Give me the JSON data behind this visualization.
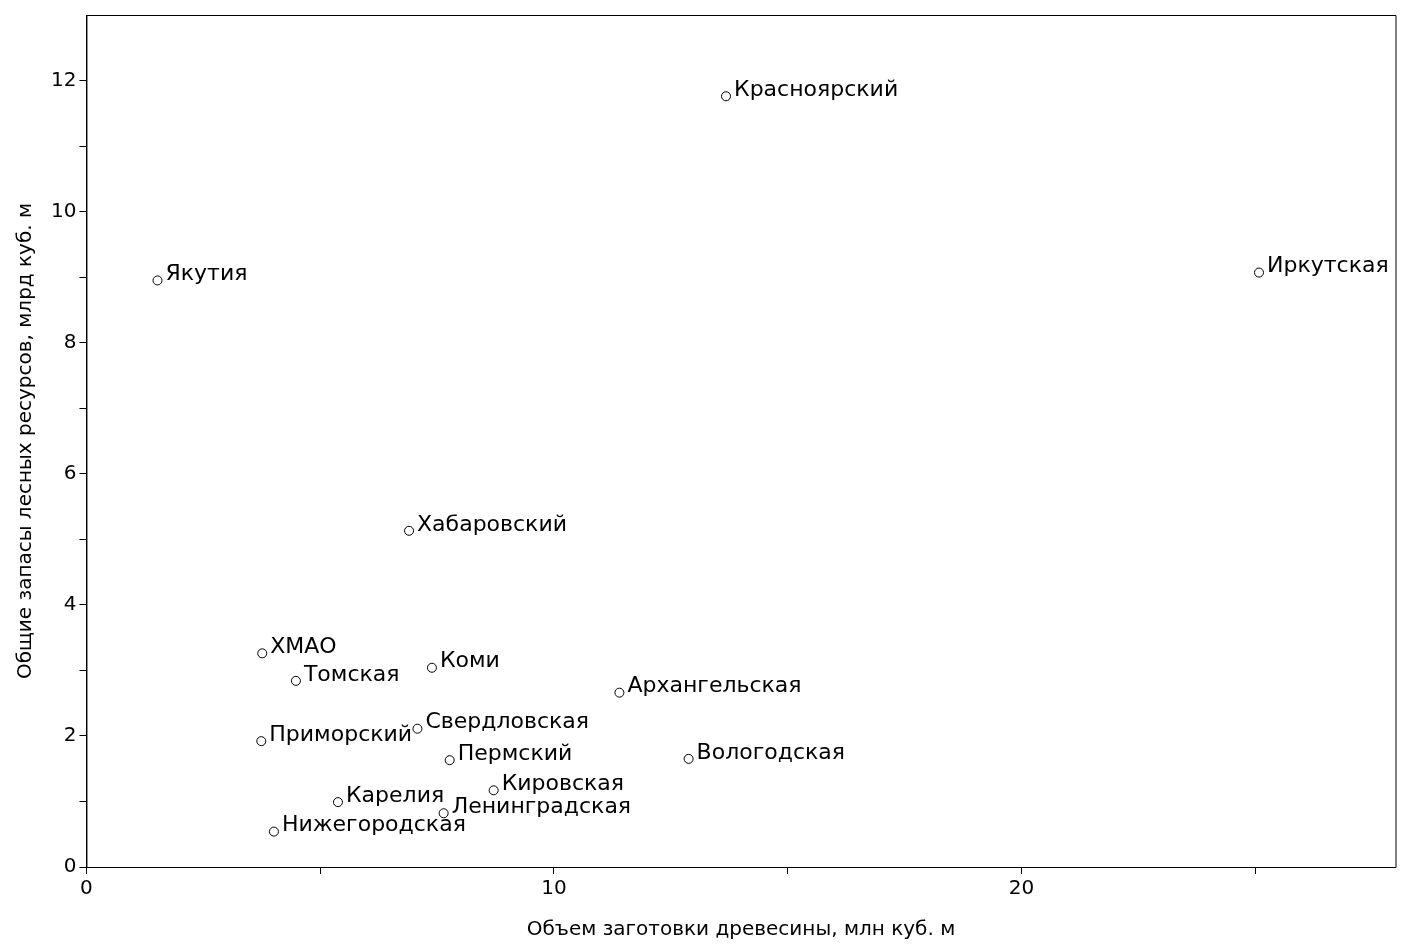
{
  "chart_data": {
    "type": "scatter",
    "xlabel": "Объем заготовки древесины, млн куб. м",
    "ylabel": "Общие запасы лесных ресурсов, млрд куб. м",
    "xlim": [
      0,
      28
    ],
    "xticks": [
      0,
      {
        "value": 5,
        "label": null
      },
      10,
      {
        "value": 15,
        "label": null
      },
      20,
      {
        "value": 25,
        "label": null
      }
    ],
    "ylim": [
      0,
      13
    ],
    "yticks": [
      0,
      {
        "value": 1,
        "label": null
      },
      2,
      {
        "value": 3,
        "label": null
      },
      4,
      {
        "value": 5,
        "label": null
      },
      6,
      {
        "value": 7,
        "label": null
      },
      8,
      {
        "value": 9,
        "label": null
      },
      10,
      {
        "value": 11,
        "label": null
      },
      12
    ],
    "grid": false,
    "legend": false,
    "marker": "circle",
    "series": [
      {
        "color": "#000000",
        "x": [
          1.52,
          13.68,
          25.08,
          6.9,
          3.76,
          4.48,
          7.39,
          11.4,
          7.08,
          3.74,
          7.77,
          12.88,
          8.71,
          5.38,
          7.64,
          4.01
        ],
        "values": [
          8.95,
          11.76,
          9.07,
          5.13,
          3.26,
          2.84,
          3.04,
          2.66,
          2.11,
          1.92,
          1.63,
          1.65,
          1.17,
          0.99,
          0.82,
          0.54
        ]
      }
    ],
    "annotations": [
      {
        "text": "Якутия",
        "x": 1.52,
        "y": 8.95
      },
      {
        "text": "Красноярский",
        "x": 13.68,
        "y": 11.76
      },
      {
        "text": "Иркутская",
        "x": 25.08,
        "y": 9.07
      },
      {
        "text": "Хабаровский",
        "x": 6.9,
        "y": 5.13
      },
      {
        "text": "ХМАО",
        "x": 3.76,
        "y": 3.26
      },
      {
        "text": "Томская",
        "x": 4.48,
        "y": 2.84
      },
      {
        "text": "Коми",
        "x": 7.39,
        "y": 3.04
      },
      {
        "text": "Архангельская",
        "x": 11.4,
        "y": 2.66
      },
      {
        "text": "Свердловская",
        "x": 7.08,
        "y": 2.11
      },
      {
        "text": "Приморский",
        "x": 3.74,
        "y": 1.92
      },
      {
        "text": "Пермский",
        "x": 7.77,
        "y": 1.63
      },
      {
        "text": "Вологодская",
        "x": 12.88,
        "y": 1.65
      },
      {
        "text": "Кировская",
        "x": 8.71,
        "y": 1.17
      },
      {
        "text": "Карелия",
        "x": 5.38,
        "y": 0.99
      },
      {
        "text": "Ленинградская",
        "x": 7.64,
        "y": 0.82
      },
      {
        "text": "Нижегородская",
        "x": 4.01,
        "y": 0.54
      }
    ]
  }
}
